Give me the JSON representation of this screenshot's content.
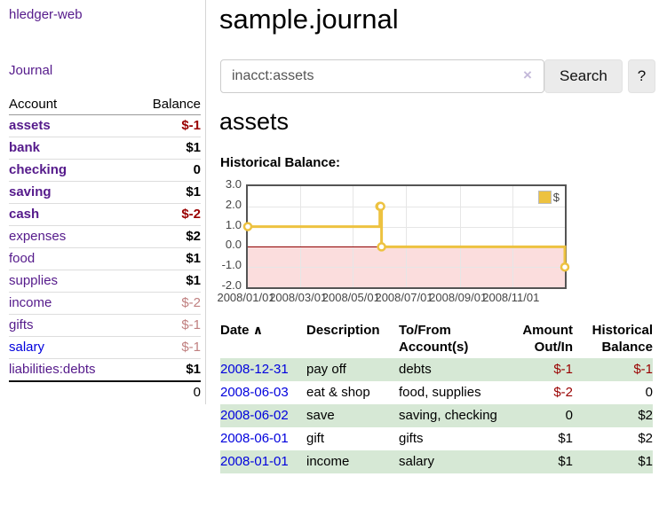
{
  "app": {
    "brand": "hledger-web"
  },
  "sidebar": {
    "nav_journal": "Journal",
    "headers": {
      "account": "Account",
      "balance": "Balance"
    },
    "accounts": [
      {
        "name": "assets",
        "balance": "$-1"
      },
      {
        "name": "bank",
        "balance": "$1"
      },
      {
        "name": "checking",
        "balance": "0"
      },
      {
        "name": "saving",
        "balance": "$1"
      },
      {
        "name": "cash",
        "balance": "$-2"
      },
      {
        "name": "expenses",
        "balance": "$2"
      },
      {
        "name": "food",
        "balance": "$1"
      },
      {
        "name": "supplies",
        "balance": "$1"
      },
      {
        "name": "income",
        "balance": "$-2"
      },
      {
        "name": "gifts",
        "balance": "$-1"
      },
      {
        "name": "salary",
        "balance": "$-1"
      },
      {
        "name": "liabilities:debts",
        "balance": "$1"
      }
    ],
    "total": "0"
  },
  "main": {
    "title": "sample.journal",
    "search": {
      "value": "inacct:assets",
      "clear_icon": "×",
      "search_button": "Search",
      "help_button": "?"
    },
    "heading": "assets",
    "chart_label": "Historical Balance:",
    "register": {
      "headers": {
        "date": "Date",
        "sort_icon": "∧",
        "description": "Description",
        "accounts": "To/From Account(s)",
        "amount": "Amount Out/In",
        "balance": "Historical Balance"
      },
      "rows": [
        {
          "date": "2008-12-31",
          "description": "pay off",
          "accounts": "debts",
          "amount": "$-1",
          "balance": "$-1"
        },
        {
          "date": "2008-06-03",
          "description": "eat & shop",
          "accounts": "food, supplies",
          "amount": "$-2",
          "balance": "0"
        },
        {
          "date": "2008-06-02",
          "description": "save",
          "accounts": "saving, checking",
          "amount": "0",
          "balance": "$2"
        },
        {
          "date": "2008-06-01",
          "description": "gift",
          "accounts": "gifts",
          "amount": "$1",
          "balance": "$2"
        },
        {
          "date": "2008-01-01",
          "description": "income",
          "accounts": "salary",
          "amount": "$1",
          "balance": "$1"
        }
      ]
    }
  },
  "chart_data": {
    "type": "line",
    "style": "step",
    "title": "Historical Balance:",
    "series": [
      {
        "name": "$",
        "color": "#edc240",
        "points": [
          {
            "date": "2008-01-01",
            "value": 1
          },
          {
            "date": "2008-06-01",
            "value": 2
          },
          {
            "date": "2008-06-02",
            "value": 2
          },
          {
            "date": "2008-06-03",
            "value": 0
          },
          {
            "date": "2008-12-31",
            "value": -1
          }
        ]
      }
    ],
    "x_range": [
      "2008-01-01",
      "2008-12-31"
    ],
    "ylim": [
      -2,
      3
    ],
    "y_ticks": [
      {
        "label": "3.0",
        "value": 3
      },
      {
        "label": "2.0",
        "value": 2
      },
      {
        "label": "1.0",
        "value": 1
      },
      {
        "label": "0.0",
        "value": 0
      },
      {
        "label": "-1.0",
        "value": -1
      },
      {
        "label": "-2.0",
        "value": -2
      }
    ],
    "x_ticks": [
      {
        "label": "2008/01/01",
        "date": "2008-01-01"
      },
      {
        "label": "2008/03/01",
        "date": "2008-03-01"
      },
      {
        "label": "2008/05/01",
        "date": "2008-05-01"
      },
      {
        "label": "2008/07/01",
        "date": "2008-07-01"
      },
      {
        "label": "2008/09/01",
        "date": "2008-09-01"
      },
      {
        "label": "2008/11/01",
        "date": "2008-11-01"
      }
    ],
    "legend_position": "top-right",
    "grid": true,
    "negative_region_shaded": true,
    "colors": {
      "line": "#edc240",
      "negative_fill": "#fbdddd",
      "zero_line": "#900000",
      "gridline": "#e6e6e6",
      "border": "#545454"
    }
  },
  "colors": {
    "accent_purple": "#551a8b",
    "link_blue": "#0000dd",
    "negative_strong": "#990000",
    "negative_soft": "#c08080",
    "row_stripe_green": "#d6e8d5",
    "chart_line": "#edc240",
    "chart_negative_fill": "#fbdddd",
    "chart_zero_line": "#900000"
  }
}
